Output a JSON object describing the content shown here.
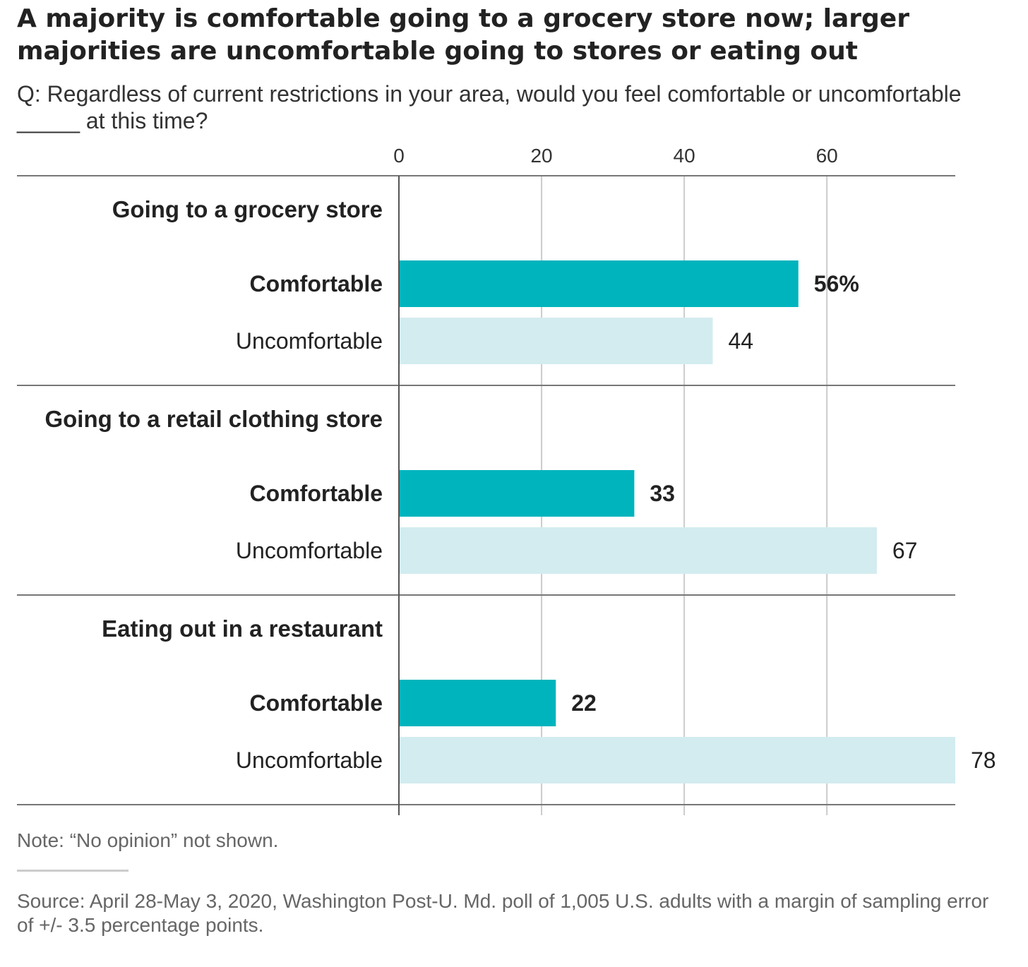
{
  "header": {
    "title": "A majority is comfortable going to a grocery store now; larger majorities are uncomfortable going to stores or eating out",
    "subtitle": "Q: Regardless of current restrictions in your area, would you feel comfortable or uncomfortable _____ at this time?"
  },
  "footer": {
    "note": "Note: “No opinion” not shown.",
    "source": "Source: April 28-May 3, 2020, Washington Post-U. Md. poll of 1,005 U.S. adults with a margin of sampling error of +/- 3.5 percentage points."
  },
  "colors": {
    "comfortable": "#00b4bd",
    "uncomfortable": "#d3ecef",
    "grid": "#cccccc",
    "axis": "#555555"
  },
  "chart_data": {
    "type": "bar",
    "orientation": "horizontal",
    "xlim": [
      0,
      78
    ],
    "xticks": [
      0,
      20,
      40,
      60
    ],
    "grid": true,
    "groups": [
      {
        "label": "Going to a grocery store",
        "bars": [
          {
            "label": "Comfortable",
            "value": 56,
            "value_label": "56%",
            "emphasis": true
          },
          {
            "label": "Uncomfortable",
            "value": 44,
            "value_label": "44",
            "emphasis": false
          }
        ]
      },
      {
        "label": "Going to a retail clothing store",
        "bars": [
          {
            "label": "Comfortable",
            "value": 33,
            "value_label": "33",
            "emphasis": true
          },
          {
            "label": "Uncomfortable",
            "value": 67,
            "value_label": "67",
            "emphasis": false
          }
        ]
      },
      {
        "label": "Eating out in a restaurant",
        "bars": [
          {
            "label": "Comfortable",
            "value": 22,
            "value_label": "22",
            "emphasis": true
          },
          {
            "label": "Uncomfortable",
            "value": 78,
            "value_label": "78",
            "emphasis": false
          }
        ]
      }
    ]
  }
}
